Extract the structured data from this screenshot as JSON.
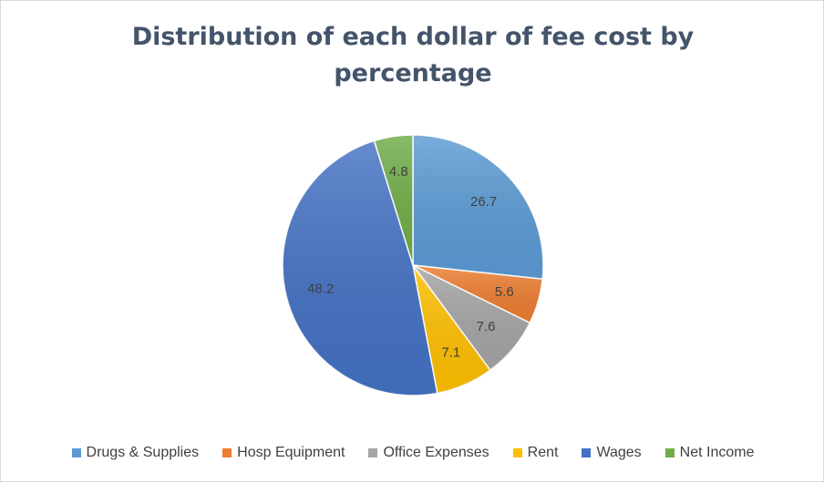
{
  "chart_data": {
    "type": "pie",
    "title": "Distribution of each dollar of fee cost by percentage",
    "categories": [
      "Drugs & Supplies",
      "Hosp Equipment",
      "Office Expenses",
      "Rent",
      "Wages",
      "Net Income"
    ],
    "values": [
      26.7,
      5.6,
      7.6,
      7.1,
      48.2,
      4.8
    ],
    "data_labels": [
      "26.7",
      "5.6",
      "7.6",
      "7.1",
      "48.2",
      "4.8"
    ],
    "colors": [
      "#5b9bd5",
      "#ed7d31",
      "#a5a5a5",
      "#ffc000",
      "#4472c4",
      "#70ad47"
    ],
    "legend_position": "bottom",
    "start_angle": "12 o'clock",
    "direction": "clockwise"
  }
}
